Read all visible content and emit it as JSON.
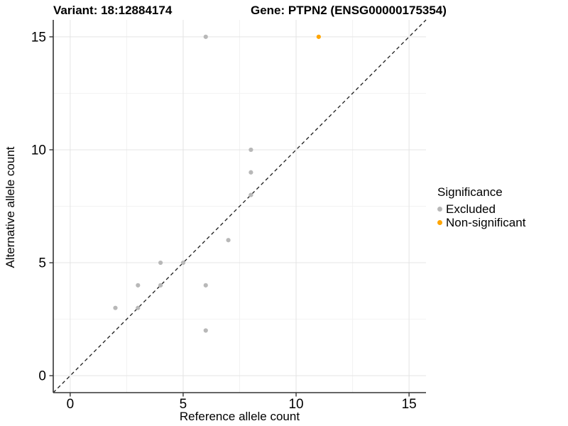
{
  "titles": {
    "variant": "Variant: 18:12884174",
    "gene": "Gene: PTPN2 (ENSG00000175354)"
  },
  "axes": {
    "x_label": "Reference allele count",
    "y_label": "Alternative allele count",
    "x_tick_labels": [
      "0",
      "5",
      "10",
      "15"
    ],
    "y_tick_labels": [
      "0",
      "5",
      "10",
      "15"
    ]
  },
  "legend": {
    "title": "Significance",
    "items": [
      {
        "label": "Excluded",
        "color": "#b8b8b8"
      },
      {
        "label": "Non-significant",
        "color": "#ffa500"
      }
    ]
  },
  "colors": {
    "excluded_point": "#b8b8b8",
    "non_significant_point": "#ffa500",
    "grid_major": "#e4e4e4",
    "grid_minor": "#f2f2f2",
    "axis_line": "#333333",
    "identity_line": "#1a1a1a",
    "text": "#000000"
  },
  "chart_data": {
    "type": "scatter",
    "title": "Variant: 18:12884174 | Gene: PTPN2 (ENSG00000175354)",
    "xlabel": "Reference allele count",
    "ylabel": "Alternative allele count",
    "xlim": [
      -0.75,
      15.75
    ],
    "ylim": [
      -0.75,
      15.75
    ],
    "x_ticks": [
      0,
      5,
      10,
      15
    ],
    "y_ticks": [
      0,
      5,
      10,
      15
    ],
    "minor_ticks": [
      2.5,
      7.5,
      12.5
    ],
    "grid": true,
    "legend_position": "right",
    "identity_line": {
      "show": true,
      "style": "dashed",
      "slope": 1,
      "intercept": 0
    },
    "series": [
      {
        "name": "Excluded",
        "color": "#b8b8b8",
        "points": [
          [
            2,
            3
          ],
          [
            3,
            3
          ],
          [
            3,
            4
          ],
          [
            4,
            4
          ],
          [
            4,
            5
          ],
          [
            5,
            5
          ],
          [
            6,
            2
          ],
          [
            6,
            4
          ],
          [
            6,
            15
          ],
          [
            7,
            6
          ],
          [
            8,
            8
          ],
          [
            8,
            9
          ],
          [
            8,
            10
          ]
        ]
      },
      {
        "name": "Non-significant",
        "color": "#ffa500",
        "points": [
          [
            11,
            15
          ]
        ]
      }
    ]
  }
}
